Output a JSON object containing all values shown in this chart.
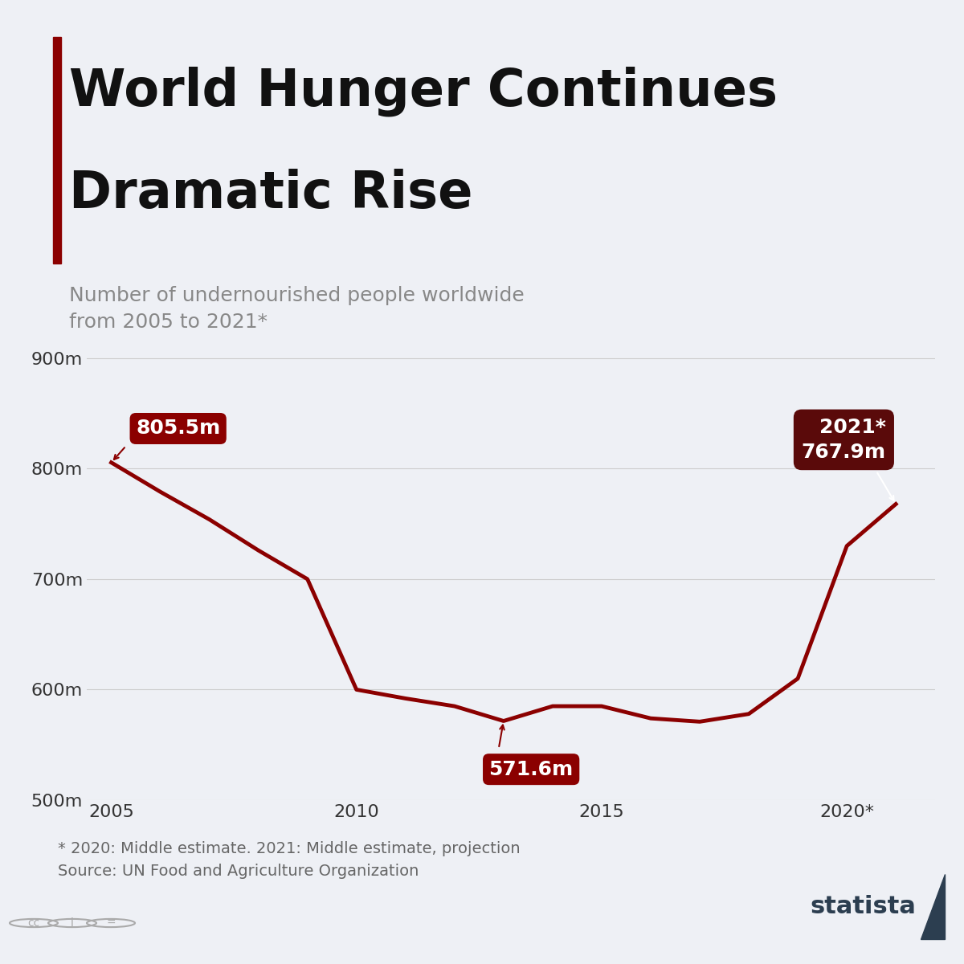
{
  "title_line1": "World Hunger Continues",
  "title_line2": "Dramatic Rise",
  "subtitle": "Number of undernourished people worldwide\nfrom 2005 to 2021*",
  "footnote": "* 2020: Middle estimate. 2021: Middle estimate, projection\nSource: UN Food and Agriculture Organization",
  "background_color": "#eef0f5",
  "line_color": "#8b0000",
  "accent_bar_color": "#8b0000",
  "years": [
    2005,
    2006,
    2007,
    2008,
    2009,
    2010,
    2011,
    2012,
    2013,
    2014,
    2015,
    2016,
    2017,
    2018,
    2019,
    2020,
    2021
  ],
  "values": [
    805.5,
    779.0,
    754.0,
    726.0,
    700.0,
    600.0,
    592.0,
    585.0,
    571.6,
    585.0,
    585.0,
    574.0,
    571.0,
    578.0,
    610.0,
    730.0,
    767.9
  ],
  "ylim": [
    500,
    910
  ],
  "yticks": [
    500,
    600,
    700,
    800,
    900
  ],
  "ytick_labels": [
    "500m",
    "600m",
    "700m",
    "800m",
    "900m"
  ],
  "xticks": [
    2005,
    2010,
    2015,
    2020
  ],
  "xtick_labels": [
    "2005",
    "2010",
    "2015",
    "2020*"
  ],
  "annotation_2005": {
    "year": 2005,
    "value": 805.5,
    "label": "805.5m"
  },
  "annotation_min": {
    "year": 2013,
    "value": 571.6,
    "label": "571.6m"
  },
  "annotation_2021": {
    "year": 2021,
    "value": 767.9,
    "label": "2021*\n767.9m"
  },
  "grid_color": "#cccccc",
  "title_color": "#111111",
  "subtitle_color": "#888888",
  "footnote_color": "#666666"
}
